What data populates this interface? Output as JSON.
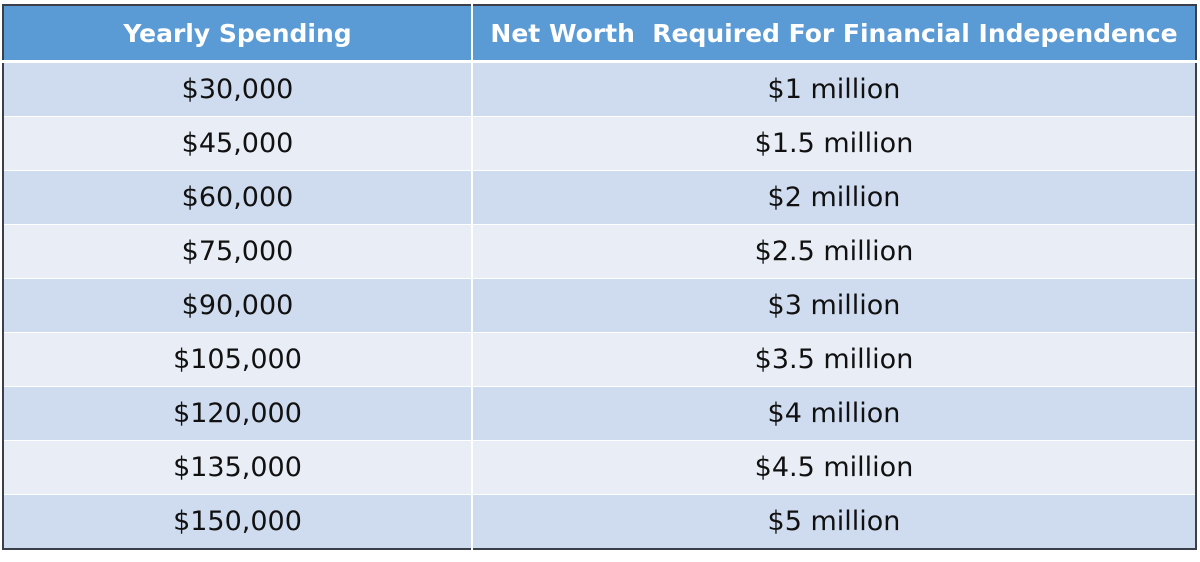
{
  "table": {
    "header": [
      "Yearly Spending",
      "Net Worth  Required For Financial Independence"
    ],
    "rows": [
      [
        "$30,000",
        "$1 million"
      ],
      [
        "$45,000",
        "$1.5 million"
      ],
      [
        "$60,000",
        "$2 million"
      ],
      [
        "$75,000",
        "$2.5 million"
      ],
      [
        "$90,000",
        "$3 million"
      ],
      [
        "$105,000",
        "$3.5 million"
      ],
      [
        "$120,000",
        "$4 million"
      ],
      [
        "$135,000",
        "$4.5 million"
      ],
      [
        "$150,000",
        "$5 million"
      ]
    ]
  }
}
